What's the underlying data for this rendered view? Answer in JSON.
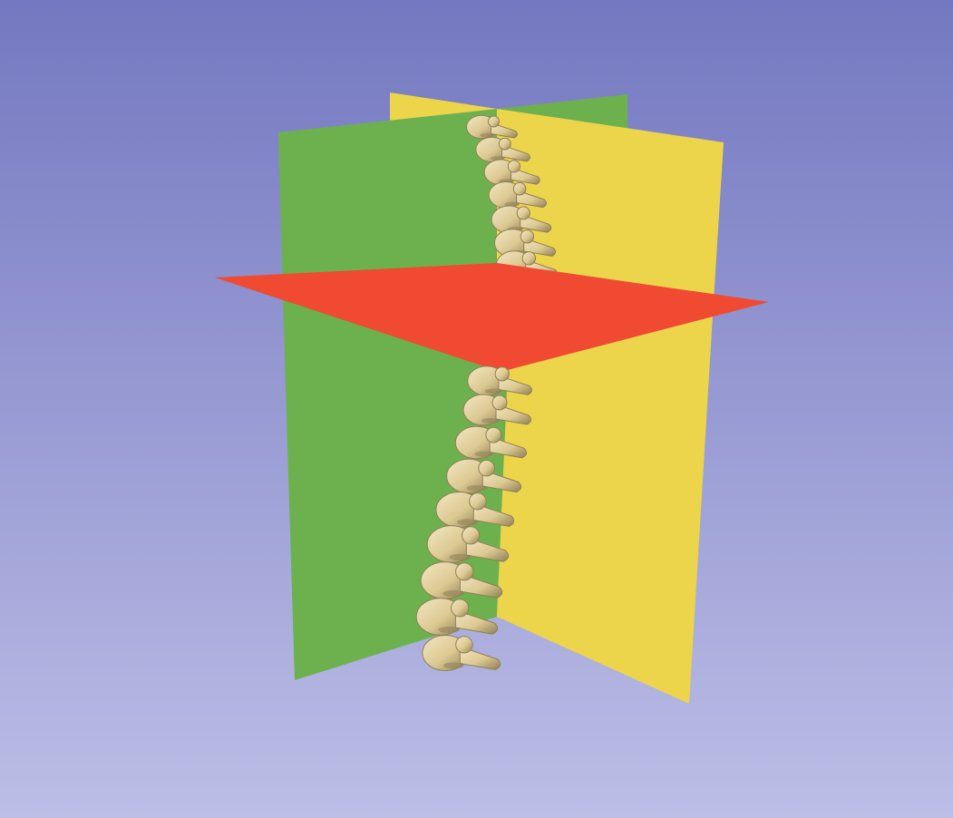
{
  "viewer": {
    "view": "3D",
    "background": {
      "top_color": "#7478c0",
      "bottom_color": "#bcbee6"
    },
    "slice_planes": [
      {
        "name": "Red",
        "orientation": "axial",
        "color": "#f04a32"
      },
      {
        "name": "Yellow",
        "orientation": "sagittal",
        "color": "#ecd54a"
      },
      {
        "name": "Green",
        "orientation": "coronal",
        "color": "#6db14e"
      }
    ],
    "model": {
      "name": "spine",
      "color": "#dcc992",
      "shadow_color": "#8f7f55",
      "highlight_color": "#f3e7c3"
    }
  }
}
